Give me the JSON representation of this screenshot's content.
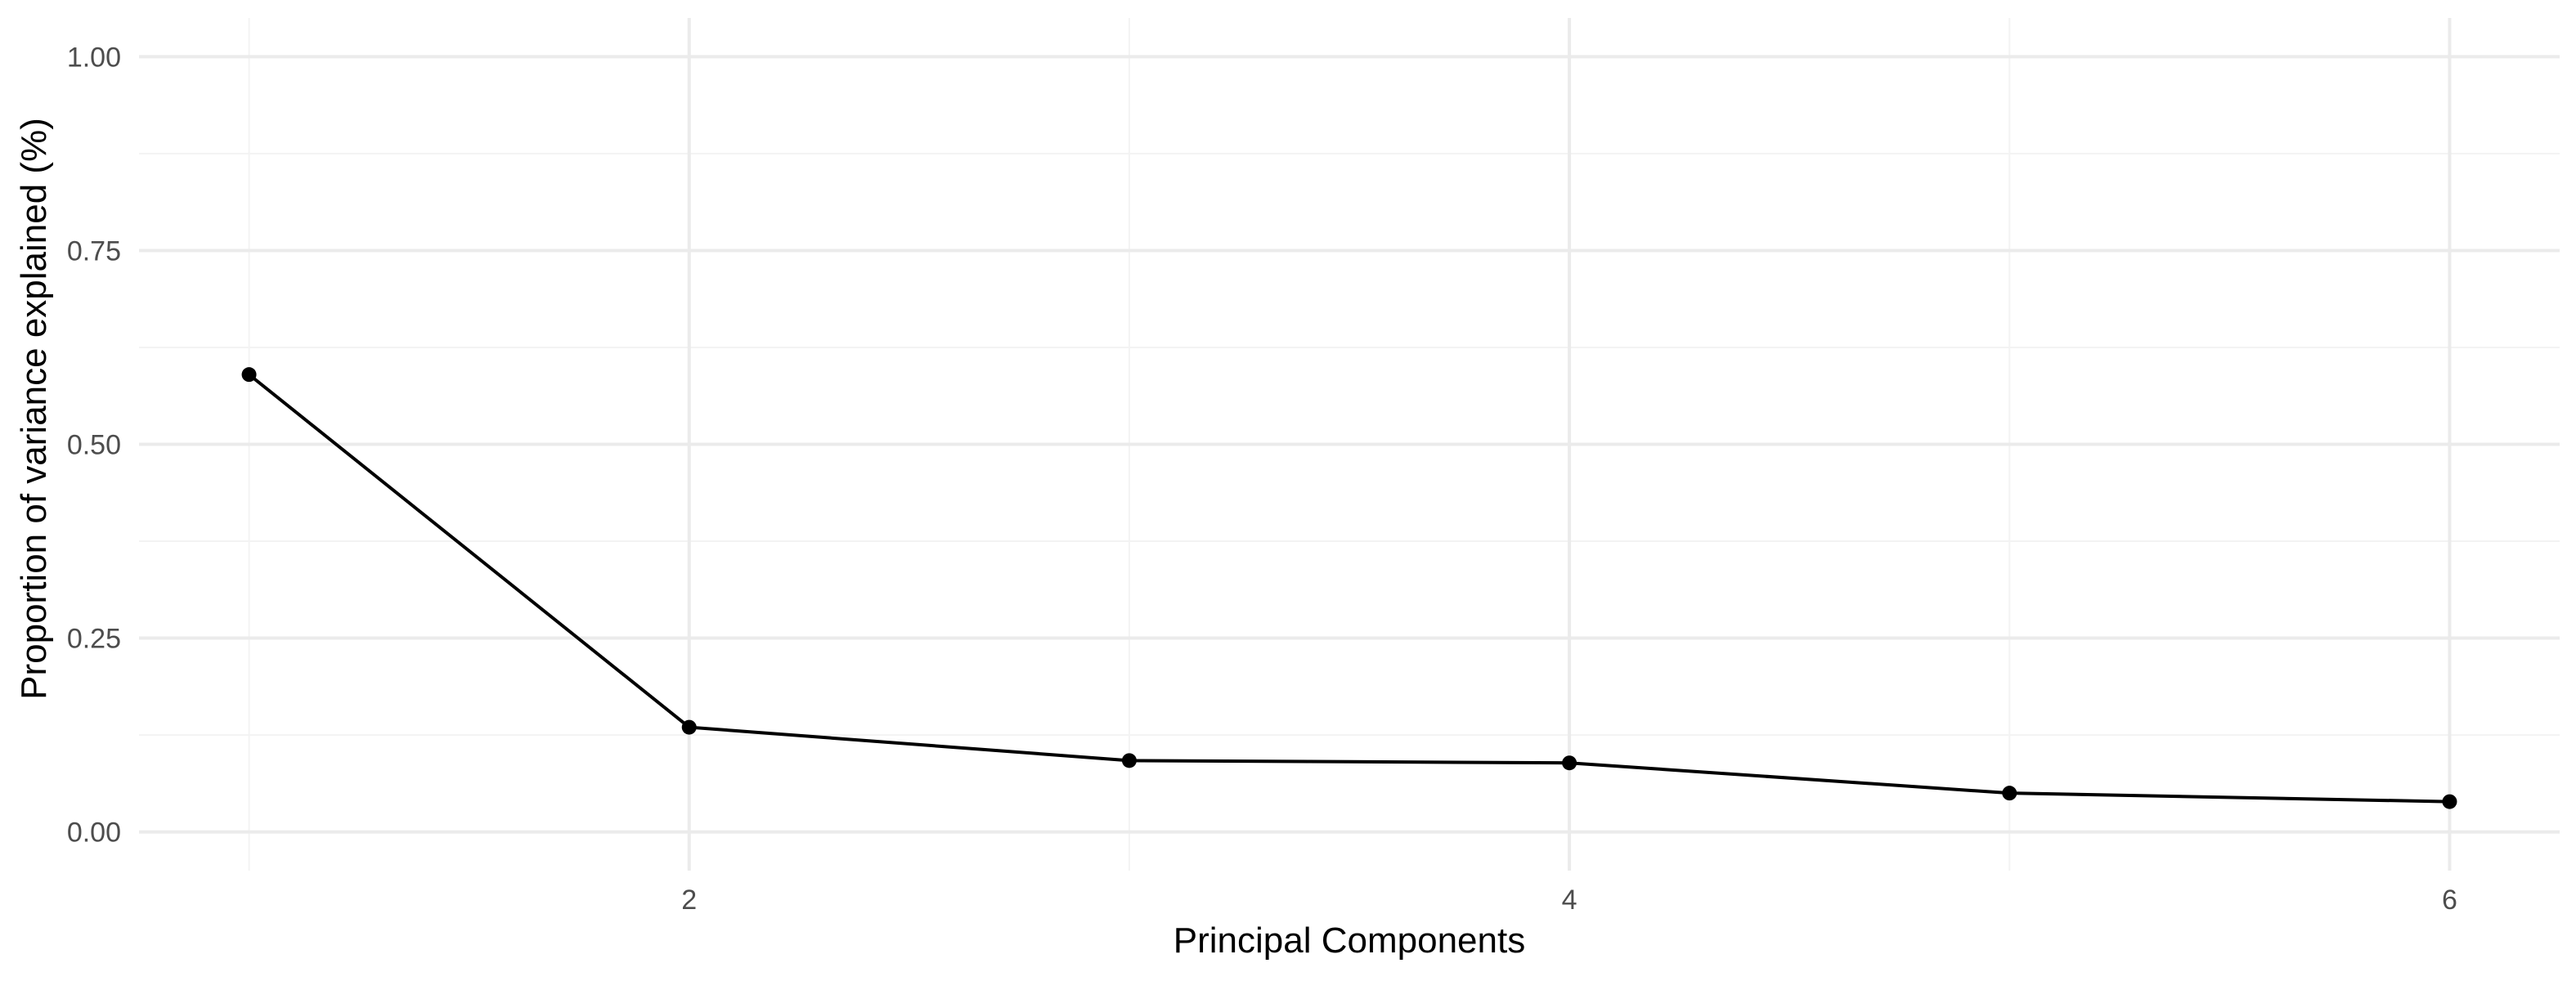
{
  "chart_data": {
    "type": "line",
    "title": "",
    "xlabel": "Principal Components",
    "ylabel": "Proportion of variance explained (%)",
    "x": [
      1,
      2,
      3,
      4,
      5,
      6
    ],
    "series": [
      {
        "values": [
          0.59,
          0.135,
          0.092,
          0.089,
          0.05,
          0.039
        ]
      }
    ],
    "xlim": [
      0.75,
      6.25
    ],
    "ylim": [
      -0.05,
      1.05
    ],
    "x_ticks": [
      2,
      4,
      6
    ],
    "x_tick_labels": [
      "2",
      "4",
      "6"
    ],
    "x_minor_gridlines": [
      1,
      3,
      5
    ],
    "y_ticks": [
      0,
      0.25,
      0.5,
      0.75,
      1
    ],
    "y_tick_labels": [
      "0.00",
      "0.25",
      "0.50",
      "0.75",
      "1.00"
    ],
    "y_minor_gridlines": [
      0.125,
      0.375,
      0.625,
      0.875
    ],
    "grid": true,
    "legend": "none",
    "colors": {
      "line": "#000000",
      "points": "#000000",
      "grid": "#ebebeb"
    }
  }
}
